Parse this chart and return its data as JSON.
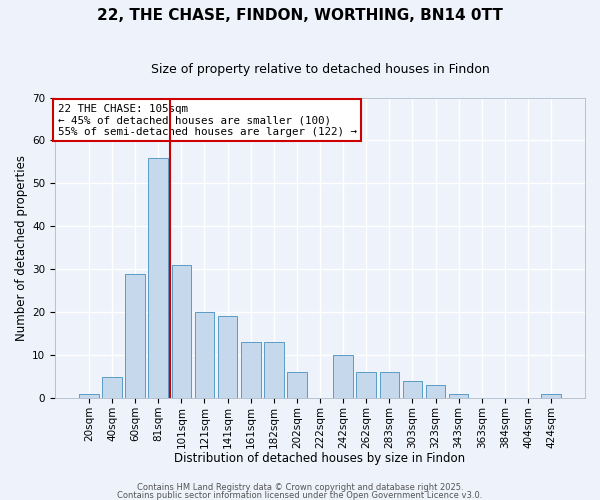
{
  "title": "22, THE CHASE, FINDON, WORTHING, BN14 0TT",
  "subtitle": "Size of property relative to detached houses in Findon",
  "xlabel": "Distribution of detached houses by size in Findon",
  "ylabel": "Number of detached properties",
  "bar_labels": [
    "20sqm",
    "40sqm",
    "60sqm",
    "81sqm",
    "101sqm",
    "121sqm",
    "141sqm",
    "161sqm",
    "182sqm",
    "202sqm",
    "222sqm",
    "242sqm",
    "262sqm",
    "283sqm",
    "303sqm",
    "323sqm",
    "343sqm",
    "363sqm",
    "384sqm",
    "404sqm",
    "424sqm"
  ],
  "bar_values": [
    1,
    5,
    29,
    56,
    31,
    20,
    19,
    13,
    13,
    6,
    0,
    10,
    6,
    6,
    4,
    3,
    1,
    0,
    0,
    0,
    1
  ],
  "bar_color": "#c6d9ec",
  "bar_edge_color": "#5a9cc5",
  "ylim": [
    0,
    70
  ],
  "yticks": [
    0,
    10,
    20,
    30,
    40,
    50,
    60,
    70
  ],
  "vline_index": 3.5,
  "vline_color": "#cc0000",
  "annotation_title": "22 THE CHASE: 105sqm",
  "annotation_line1": "← 45% of detached houses are smaller (100)",
  "annotation_line2": "55% of semi-detached houses are larger (122) →",
  "annotation_box_color": "#cc0000",
  "annotation_box_fill": "#ffffff",
  "footer1": "Contains HM Land Registry data © Crown copyright and database right 2025.",
  "footer2": "Contains public sector information licensed under the Open Government Licence v3.0.",
  "background_color": "#eef2fb",
  "plot_background": "#eef2fb",
  "grid_color": "#ffffff",
  "title_fontsize": 11,
  "subtitle_fontsize": 9,
  "axis_label_fontsize": 8.5,
  "tick_fontsize": 7.5,
  "annotation_fontsize": 7.8,
  "footer_fontsize": 6
}
